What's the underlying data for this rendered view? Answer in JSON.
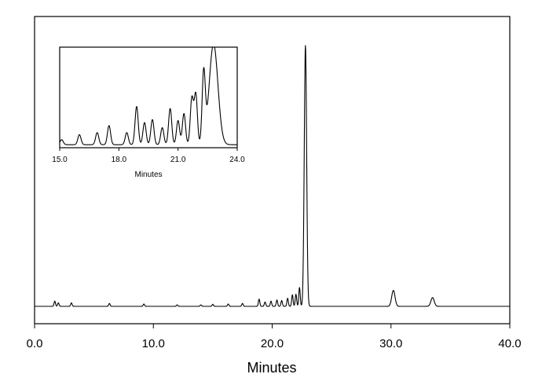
{
  "chart_data": [
    {
      "type": "line",
      "title": "",
      "xlabel": "Minutes",
      "ylabel": "",
      "xlim": [
        0,
        40
      ],
      "ylim": [
        -0.06,
        1.0
      ],
      "y_axis_shown": false,
      "grid": false,
      "x_ticks": [
        0,
        10,
        20,
        30,
        40
      ],
      "x_tick_labels": [
        "0.0",
        "10.0",
        "20.0",
        "30.0",
        "40.0"
      ],
      "baseline": 0.0,
      "series": [
        {
          "peaks": [
            {
              "x": 1.7,
              "y": 0.018
            },
            {
              "x": 2.0,
              "y": 0.012
            },
            {
              "x": 3.1,
              "y": 0.012
            },
            {
              "x": 6.3,
              "y": 0.01
            },
            {
              "x": 9.2,
              "y": 0.008
            },
            {
              "x": 12.0,
              "y": 0.005
            },
            {
              "x": 14.0,
              "y": 0.005
            },
            {
              "x": 15.0,
              "y": 0.007
            },
            {
              "x": 16.3,
              "y": 0.008
            },
            {
              "x": 17.5,
              "y": 0.01
            },
            {
              "x": 18.9,
              "y": 0.025
            },
            {
              "x": 19.4,
              "y": 0.015
            },
            {
              "x": 19.9,
              "y": 0.018
            },
            {
              "x": 20.4,
              "y": 0.022
            },
            {
              "x": 20.8,
              "y": 0.02
            },
            {
              "x": 21.3,
              "y": 0.028
            },
            {
              "x": 21.7,
              "y": 0.04
            },
            {
              "x": 22.0,
              "y": 0.042
            },
            {
              "x": 22.3,
              "y": 0.065
            },
            {
              "x": 22.8,
              "y": 0.9
            },
            {
              "x": 30.2,
              "y": 0.055
            },
            {
              "x": 33.5,
              "y": 0.03
            }
          ]
        }
      ]
    },
    {
      "type": "line",
      "title": "",
      "xlabel": "Minutes",
      "ylabel": "",
      "xlim": [
        15.0,
        24.0
      ],
      "ylim": [
        0,
        1
      ],
      "y_axis_shown": false,
      "grid": false,
      "x_ticks": [
        15,
        18,
        21,
        24
      ],
      "x_tick_labels": [
        "15.0",
        "18.0",
        "21.0",
        "24.0"
      ],
      "baseline": 0.03,
      "series": [
        {
          "peaks": [
            {
              "x": 15.1,
              "y": 0.05
            },
            {
              "x": 16.0,
              "y": 0.1
            },
            {
              "x": 16.9,
              "y": 0.12
            },
            {
              "x": 17.5,
              "y": 0.19
            },
            {
              "x": 18.4,
              "y": 0.12
            },
            {
              "x": 18.9,
              "y": 0.38
            },
            {
              "x": 19.3,
              "y": 0.22
            },
            {
              "x": 19.7,
              "y": 0.25
            },
            {
              "x": 20.2,
              "y": 0.17
            },
            {
              "x": 20.6,
              "y": 0.36
            },
            {
              "x": 21.0,
              "y": 0.24
            },
            {
              "x": 21.3,
              "y": 0.31
            },
            {
              "x": 21.7,
              "y": 0.46
            },
            {
              "x": 21.9,
              "y": 0.5
            },
            {
              "x": 22.3,
              "y": 0.69
            },
            {
              "x": 22.8,
              "y": 1.0
            }
          ]
        }
      ]
    }
  ]
}
